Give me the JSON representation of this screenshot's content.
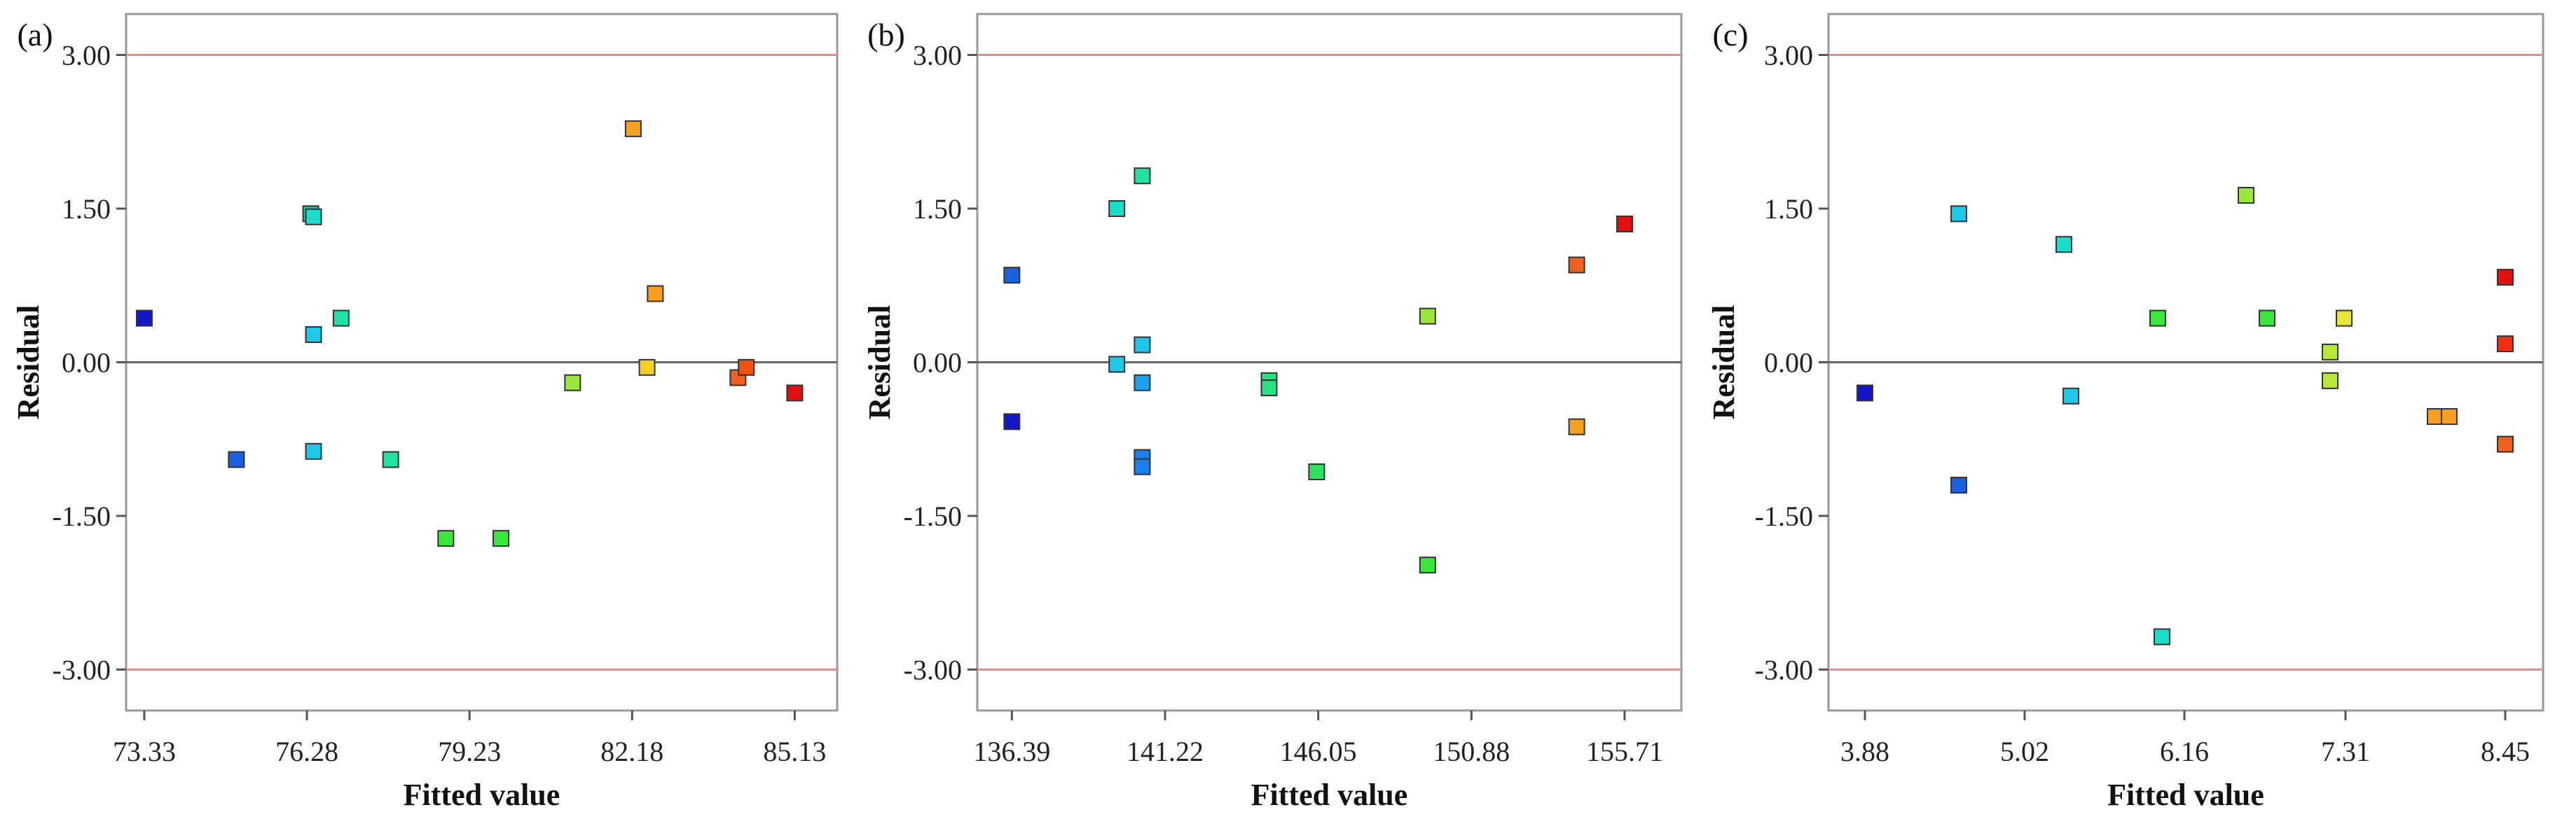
{
  "colors": {
    "limit_line": "#e88a8a",
    "zero_line": "#666666",
    "frame": "#999999",
    "marker_stroke": "#333333"
  },
  "chart_data": [
    {
      "type": "scatter",
      "panel_label": "(a)",
      "xlabel": "Fitted value",
      "ylabel": "Residual",
      "xticks": [
        "73.33",
        "76.28",
        "79.23",
        "82.18",
        "85.13"
      ],
      "yticks": [
        "3.00",
        "1.50",
        "0.00",
        "-1.50",
        "-3.00"
      ],
      "xlim": [
        73.0,
        85.9
      ],
      "ylim": [
        -3.4,
        3.4
      ],
      "limit_lines": [
        3.0,
        -3.0
      ],
      "grid": false,
      "points": [
        {
          "x": 73.33,
          "y": 0.43,
          "color": "#1515c8"
        },
        {
          "x": 75.0,
          "y": -0.95,
          "color": "#1a5fe0"
        },
        {
          "x": 76.35,
          "y": 1.45,
          "color": "#15c8b5"
        },
        {
          "x": 76.4,
          "y": 1.42,
          "color": "#1adcc8"
        },
        {
          "x": 76.4,
          "y": 0.27,
          "color": "#1ec8e6"
        },
        {
          "x": 76.4,
          "y": -0.87,
          "color": "#1ec8e6"
        },
        {
          "x": 76.9,
          "y": 0.43,
          "color": "#20dfa6"
        },
        {
          "x": 77.8,
          "y": -0.95,
          "color": "#22e0a0"
        },
        {
          "x": 78.8,
          "y": -1.72,
          "color": "#3ae63a"
        },
        {
          "x": 79.8,
          "y": -1.72,
          "color": "#3ae63a"
        },
        {
          "x": 81.1,
          "y": -0.2,
          "color": "#9ae63a"
        },
        {
          "x": 82.2,
          "y": 2.28,
          "color": "#f5a020"
        },
        {
          "x": 82.45,
          "y": -0.05,
          "color": "#f5d020"
        },
        {
          "x": 82.6,
          "y": 0.67,
          "color": "#f5a020"
        },
        {
          "x": 84.1,
          "y": -0.15,
          "color": "#f06020"
        },
        {
          "x": 84.25,
          "y": -0.05,
          "color": "#f05010"
        },
        {
          "x": 85.13,
          "y": -0.3,
          "color": "#e01010"
        }
      ]
    },
    {
      "type": "scatter",
      "panel_label": "(b)",
      "xlabel": "Fitted value",
      "ylabel": "Residual",
      "xticks": [
        "136.39",
        "141.22",
        "146.05",
        "150.88",
        "155.71"
      ],
      "yticks": [
        "3.00",
        "1.50",
        "0.00",
        "-1.50",
        "-3.00"
      ],
      "xlim": [
        135.3,
        157.5
      ],
      "ylim": [
        -3.4,
        3.4
      ],
      "limit_lines": [
        3.0,
        -3.0
      ],
      "grid": false,
      "points": [
        {
          "x": 136.39,
          "y": 0.85,
          "color": "#1a5fe0"
        },
        {
          "x": 136.39,
          "y": -0.58,
          "color": "#1515c8"
        },
        {
          "x": 139.7,
          "y": 1.5,
          "color": "#1adcc8"
        },
        {
          "x": 139.7,
          "y": -0.02,
          "color": "#1ec8e6"
        },
        {
          "x": 140.5,
          "y": 1.82,
          "color": "#22e0a0"
        },
        {
          "x": 140.5,
          "y": 0.17,
          "color": "#1ec8e6"
        },
        {
          "x": 140.5,
          "y": -0.2,
          "color": "#1ea0f0"
        },
        {
          "x": 140.5,
          "y": -0.93,
          "color": "#1a80f0"
        },
        {
          "x": 140.5,
          "y": -1.02,
          "color": "#1a80f0"
        },
        {
          "x": 144.5,
          "y": -0.18,
          "color": "#2ae080"
        },
        {
          "x": 144.5,
          "y": -0.25,
          "color": "#2ae080"
        },
        {
          "x": 146.0,
          "y": -1.07,
          "color": "#30e060"
        },
        {
          "x": 149.5,
          "y": 0.45,
          "color": "#9ae63a"
        },
        {
          "x": 149.5,
          "y": -1.98,
          "color": "#3ae63a"
        },
        {
          "x": 154.2,
          "y": 0.95,
          "color": "#f06020"
        },
        {
          "x": 154.2,
          "y": -0.63,
          "color": "#f5a020"
        },
        {
          "x": 155.71,
          "y": 1.35,
          "color": "#e01010"
        }
      ]
    },
    {
      "type": "scatter",
      "panel_label": "(c)",
      "xlabel": "Fitted value",
      "ylabel": "Residual",
      "xticks": [
        "3.88",
        "5.02",
        "6.16",
        "7.31",
        "8.45"
      ],
      "yticks": [
        "3.00",
        "1.50",
        "0.00",
        "-1.50",
        "-3.00"
      ],
      "xlim": [
        3.62,
        8.72
      ],
      "ylim": [
        -3.4,
        3.4
      ],
      "limit_lines": [
        3.0,
        -3.0
      ],
      "grid": false,
      "points": [
        {
          "x": 3.88,
          "y": -0.3,
          "color": "#1515c8"
        },
        {
          "x": 4.55,
          "y": 1.45,
          "color": "#1ec8e6"
        },
        {
          "x": 4.55,
          "y": -1.2,
          "color": "#1a5fe0"
        },
        {
          "x": 5.3,
          "y": 1.15,
          "color": "#1adcc8"
        },
        {
          "x": 5.35,
          "y": -0.33,
          "color": "#1ec8e6"
        },
        {
          "x": 5.97,
          "y": 0.43,
          "color": "#3ae63a"
        },
        {
          "x": 6.0,
          "y": -2.68,
          "color": "#1adcc8"
        },
        {
          "x": 6.6,
          "y": 1.63,
          "color": "#9ae63a"
        },
        {
          "x": 6.75,
          "y": 0.43,
          "color": "#3ae63a"
        },
        {
          "x": 7.2,
          "y": 0.1,
          "color": "#b8e63a"
        },
        {
          "x": 7.2,
          "y": -0.18,
          "color": "#b8e63a"
        },
        {
          "x": 7.3,
          "y": 0.43,
          "color": "#e6e63a"
        },
        {
          "x": 7.95,
          "y": -0.53,
          "color": "#f5a020"
        },
        {
          "x": 8.05,
          "y": -0.53,
          "color": "#f5a020"
        },
        {
          "x": 8.45,
          "y": 0.83,
          "color": "#e01010"
        },
        {
          "x": 8.45,
          "y": 0.18,
          "color": "#f03010"
        },
        {
          "x": 8.45,
          "y": -0.8,
          "color": "#f06020"
        }
      ]
    }
  ]
}
